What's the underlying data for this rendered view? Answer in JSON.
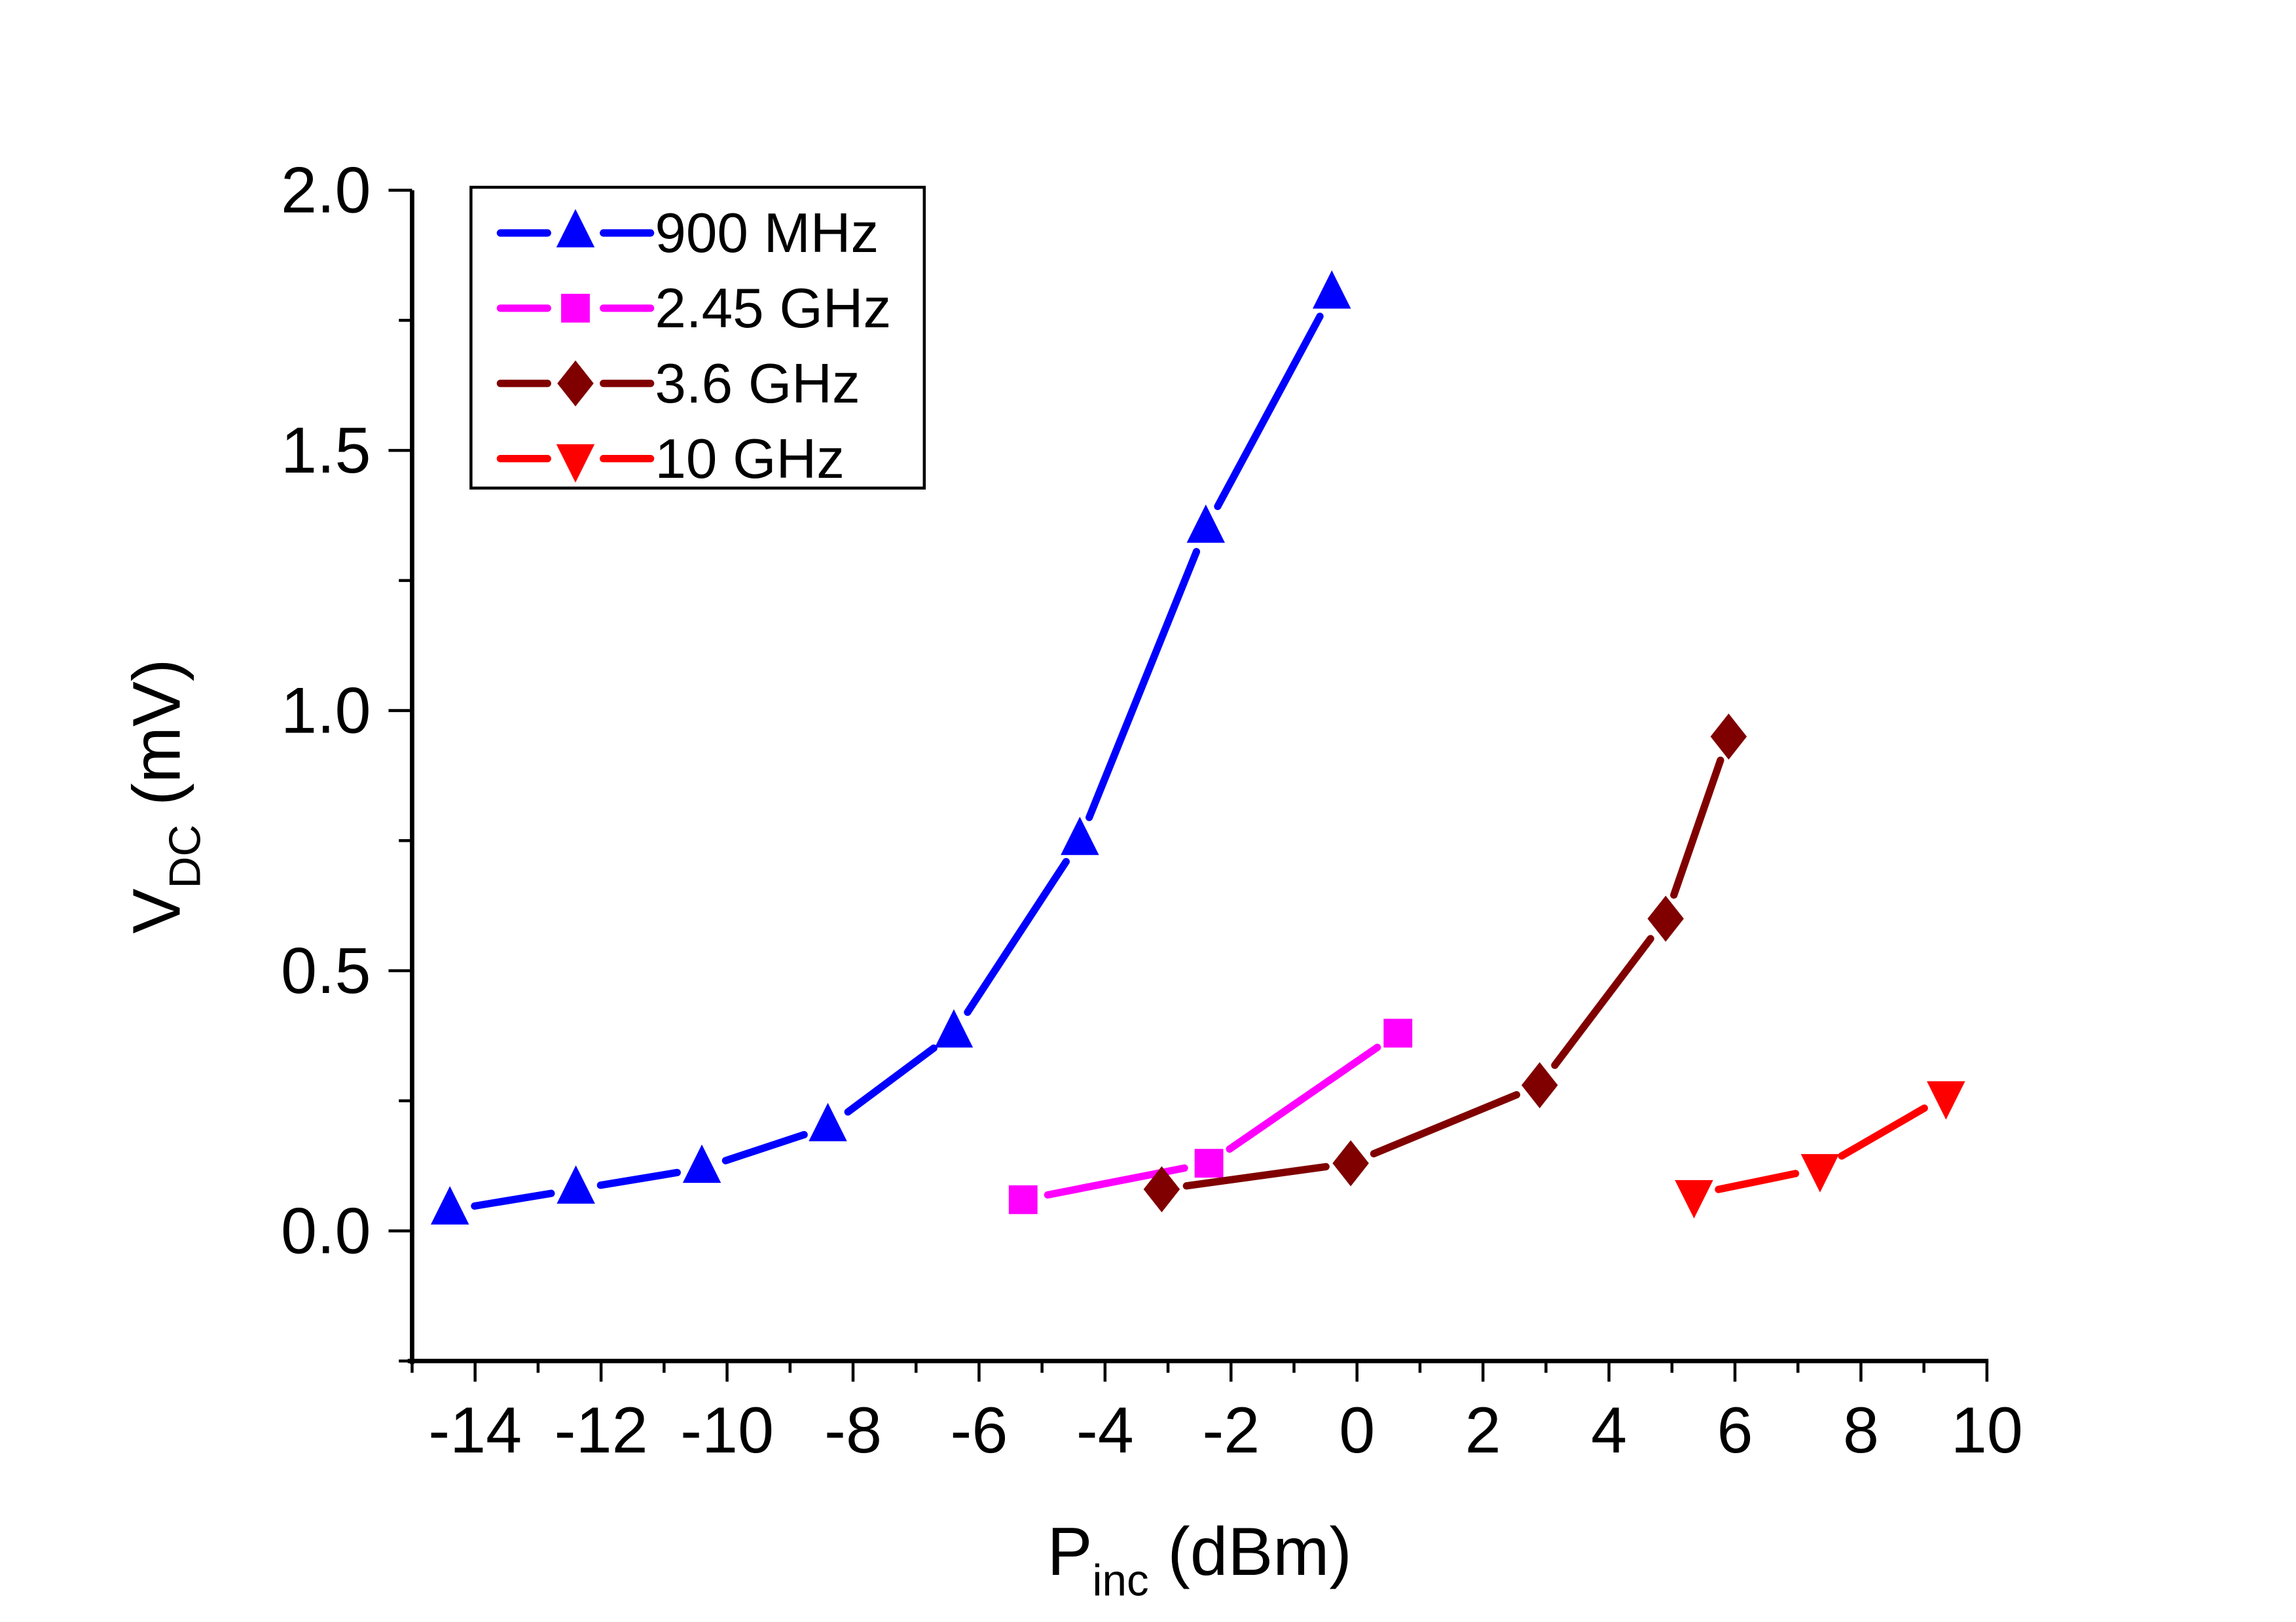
{
  "chart_data": {
    "type": "line",
    "title": "",
    "xlabel": {
      "main": "P",
      "sub": "inc",
      "unit": " (dBm)"
    },
    "ylabel": {
      "main": "V",
      "sub": "DC",
      "unit": " (mV)"
    },
    "xlim": [
      -15,
      10
    ],
    "ylim": [
      -0.25,
      2.0
    ],
    "x_ticks": [
      -14,
      -12,
      -10,
      -8,
      -6,
      -4,
      -2,
      0,
      2,
      4,
      6,
      8,
      10
    ],
    "x_tick_labels": [
      "-14",
      "-12",
      "-10",
      "-8",
      "-6",
      "-4",
      "-2",
      "0",
      "2",
      "4",
      "6",
      "8",
      "10"
    ],
    "x_minor_step": 1,
    "y_ticks": [
      0.0,
      0.5,
      1.0,
      1.5,
      2.0
    ],
    "y_tick_labels": [
      "0.0",
      "0.5",
      "1.0",
      "1.5",
      "2.0"
    ],
    "y_minor_step": 0.25,
    "grid": false,
    "legend_position": "top-left",
    "series": [
      {
        "name": "900 MHz",
        "color": "#0000ff",
        "marker": "triangle-up",
        "x": [
          -14.4,
          -12.4,
          -10.4,
          -8.4,
          -6.4,
          -4.4,
          -2.4,
          -0.4
        ],
        "y": [
          0.04,
          0.08,
          0.12,
          0.2,
          0.38,
          0.75,
          1.35,
          1.8
        ]
      },
      {
        "name": "2.45 GHz",
        "color": "#ff00ff",
        "marker": "square",
        "x": [
          -5.3,
          -2.35,
          0.65
        ],
        "y": [
          0.06,
          0.13,
          0.38
        ]
      },
      {
        "name": "3.6 GHz",
        "color": "#800000",
        "marker": "diamond",
        "x": [
          -3.1,
          -0.1,
          2.9,
          4.9,
          5.9
        ],
        "y": [
          0.08,
          0.13,
          0.28,
          0.6,
          0.95
        ]
      },
      {
        "name": "10 GHz",
        "color": "#ff0000",
        "marker": "triangle-down",
        "x": [
          5.35,
          7.35,
          9.35
        ],
        "y": [
          0.07,
          0.12,
          0.26
        ]
      }
    ]
  }
}
